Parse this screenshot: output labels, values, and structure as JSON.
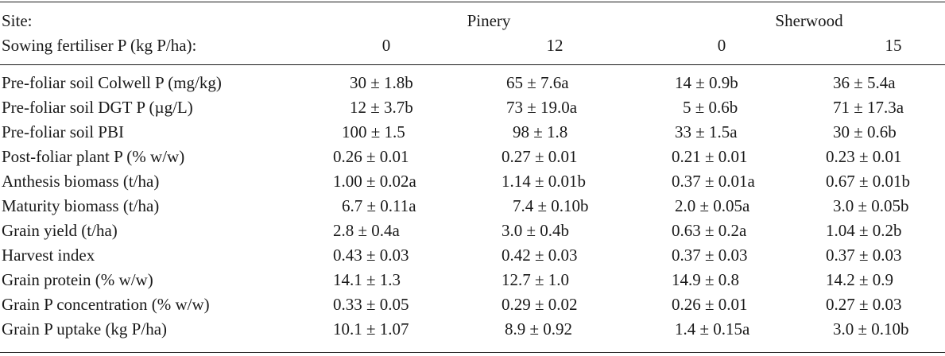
{
  "header": {
    "site_label": "Site:",
    "sites": [
      "Pinery",
      "Sherwood"
    ],
    "fert_label": "Sowing fertiliser P (kg P/ha):",
    "fert_levels": [
      "0",
      "12",
      "0",
      "15"
    ]
  },
  "rows": [
    {
      "label": "Pre-foliar soil Colwell P (mg/kg)",
      "values": [
        "30 ± 1.8b",
        "65 ± 7.6a",
        "14 ± 0.9b",
        "36 ± 5.4a"
      ]
    },
    {
      "label": "Pre-foliar soil DGT P (µg/L)",
      "values": [
        "12 ± 3.7b",
        "73 ± 19.0a",
        "5 ± 0.6b",
        "71 ± 17.3a"
      ]
    },
    {
      "label": "Pre-foliar soil PBI",
      "values": [
        "100 ± 1.5",
        "98 ± 1.8",
        "33 ± 1.5a",
        "30 ± 0.6b"
      ]
    },
    {
      "label": "Post-foliar plant P (% w/w)",
      "values": [
        "0.26 ± 0.01",
        "0.27 ± 0.01",
        "0.21 ± 0.01",
        "0.23 ± 0.01"
      ]
    },
    {
      "label": "Anthesis biomass (t/ha)",
      "values": [
        "1.00 ± 0.02a",
        "1.14 ± 0.01b",
        "0.37 ± 0.01a",
        "0.67 ± 0.01b"
      ]
    },
    {
      "label": "Maturity biomass (t/ha)",
      "values": [
        "6.7 ± 0.11a",
        "7.4 ± 0.10b",
        "2.0 ± 0.05a",
        "3.0 ± 0.05b"
      ]
    },
    {
      "label": "Grain yield (t/ha)",
      "values": [
        "2.8 ± 0.4a",
        "3.0 ± 0.4b",
        "0.63 ± 0.2a",
        "1.04 ± 0.2b"
      ]
    },
    {
      "label": "Harvest index",
      "values": [
        "0.43 ± 0.03",
        "0.42 ± 0.03",
        "0.37 ± 0.03",
        "0.37 ± 0.03"
      ]
    },
    {
      "label": "Grain protein (% w/w)",
      "values": [
        "14.1 ± 1.3",
        "12.7 ± 1.0",
        "14.9 ± 0.8",
        "14.2 ± 0.9"
      ]
    },
    {
      "label": "Grain P concentration (% w/w)",
      "values": [
        "0.33 ± 0.05",
        "0.29 ± 0.02",
        "0.26 ± 0.01",
        "0.27 ± 0.03"
      ]
    },
    {
      "label": "Grain P uptake (kg P/ha)",
      "values": [
        "10.1 ± 1.07",
        "8.9 ± 0.92",
        "1.4 ± 0.15a",
        "3.0 ± 0.10b"
      ]
    }
  ]
}
